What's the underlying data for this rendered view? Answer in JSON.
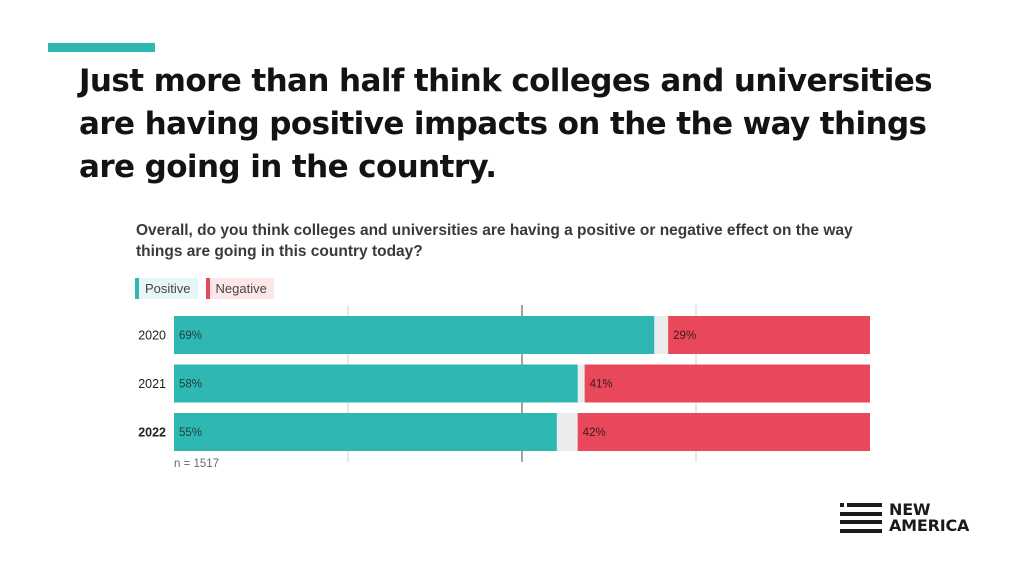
{
  "headline": "Just more than half think colleges and universities are having positive impacts on the the way things are going in the country.",
  "colors": {
    "accent": "#2fb8b3",
    "positive": "#2fb8b3",
    "negative": "#e8485a",
    "neutral": "#ececec",
    "gridline": "#d0d0d0",
    "center_line": "#8a8a8a"
  },
  "chart_data": {
    "type": "bar",
    "orientation": "horizontal",
    "stacked": true,
    "title": "Overall, do you think colleges and universities are having a positive or negative effect on the way things are going in this country today?",
    "categories": [
      "2020",
      "2021",
      "2022"
    ],
    "highlighted_category": "2022",
    "series": [
      {
        "name": "Positive",
        "values": [
          69,
          58,
          55
        ],
        "labels": [
          "69%",
          "58%",
          "55%"
        ]
      },
      {
        "name": "Negative",
        "values": [
          29,
          41,
          42
        ],
        "labels": [
          "29%",
          "41%",
          "42%"
        ]
      }
    ],
    "xlim": [
      0,
      100
    ],
    "legend": [
      "Positive",
      "Negative"
    ],
    "legend_position": "top-left",
    "note": "n = 1517"
  },
  "logo": {
    "line1": "NEW",
    "line2": "AMERICA"
  }
}
